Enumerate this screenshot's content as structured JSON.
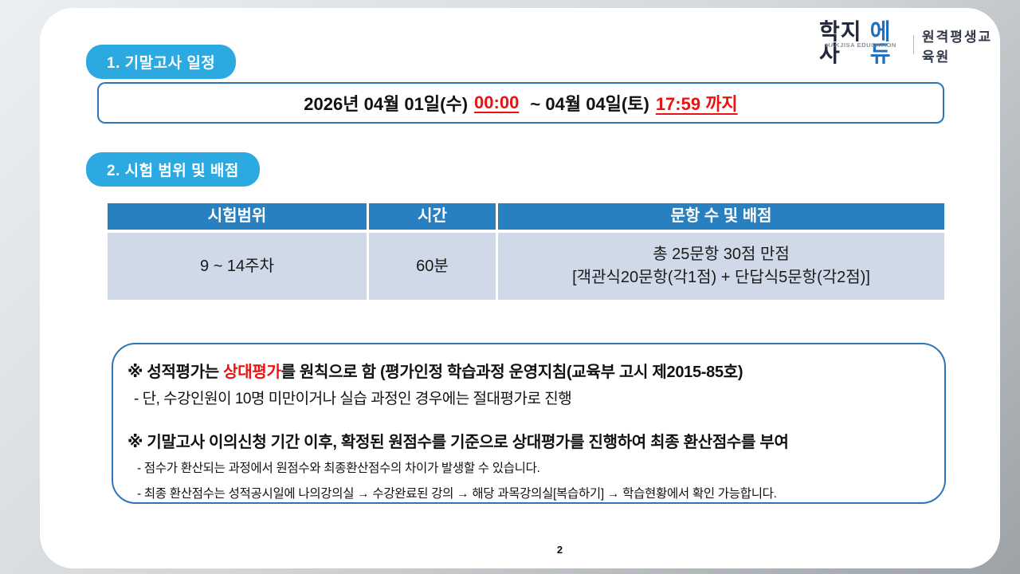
{
  "colors": {
    "badge_blue": "#2BA9E0",
    "table_header_blue": "#2980C0",
    "table_row_bg": "#CFD9E8",
    "box_border_blue": "#2E75B6",
    "highlight_red": "#EE1111"
  },
  "logo": {
    "brand_primary": "학지사",
    "brand_secondary": "에듀",
    "brand_en": "HAKJISA EDUCATION",
    "org_name": "원격평생교육원"
  },
  "schedule_section": {
    "badge_label": "1. 기말고사 일정",
    "date_prefix": "2026년 04월 01일(수)",
    "start_time": "00:00",
    "date_middle": " ~ 04월 04일(토)",
    "end_time": "17:59 까지"
  },
  "exam_section": {
    "badge_label": "2. 시험 범위 및 배점",
    "table": {
      "headers": [
        "시험범위",
        "시간",
        "문항 수 및 배점"
      ],
      "row": {
        "exam_range": "9 ~ 14주차",
        "duration": "60분",
        "scoring_line1": "총 25문항 30점 만점",
        "scoring_line2": "[객관식20문항(각1점) + 단답식5문항(각2점)]"
      }
    }
  },
  "notes": {
    "note1_prefix": "※ 성적평가는 ",
    "note1_highlight": "상대평가",
    "note1_suffix": "를 원칙으로 함 (평가인정 학습과정 운영지침(교육부 고시 제2015-85호)",
    "note1_sub": "- 단, 수강인원이 10명 미만이거나 실습 과정인 경우에는 절대평가로 진행",
    "note2": "※ 기말고사 이의신청 기간 이후, 확정된 원점수를 기준으로 상대평가를 진행하여 최종 환산점수를 부여",
    "note2_sub1": "- 점수가 환산되는 과정에서 원점수와 최종환산점수의 차이가 발생할 수 있습니다.",
    "note2_sub2": "- 최종 환산점수는 성적공시일에 나의강의실 → 수강완료된 강의 → 해당 과목강의실[복습하기] → 학습현황에서 확인 가능합니다."
  },
  "footer": {
    "page_number": "2"
  }
}
